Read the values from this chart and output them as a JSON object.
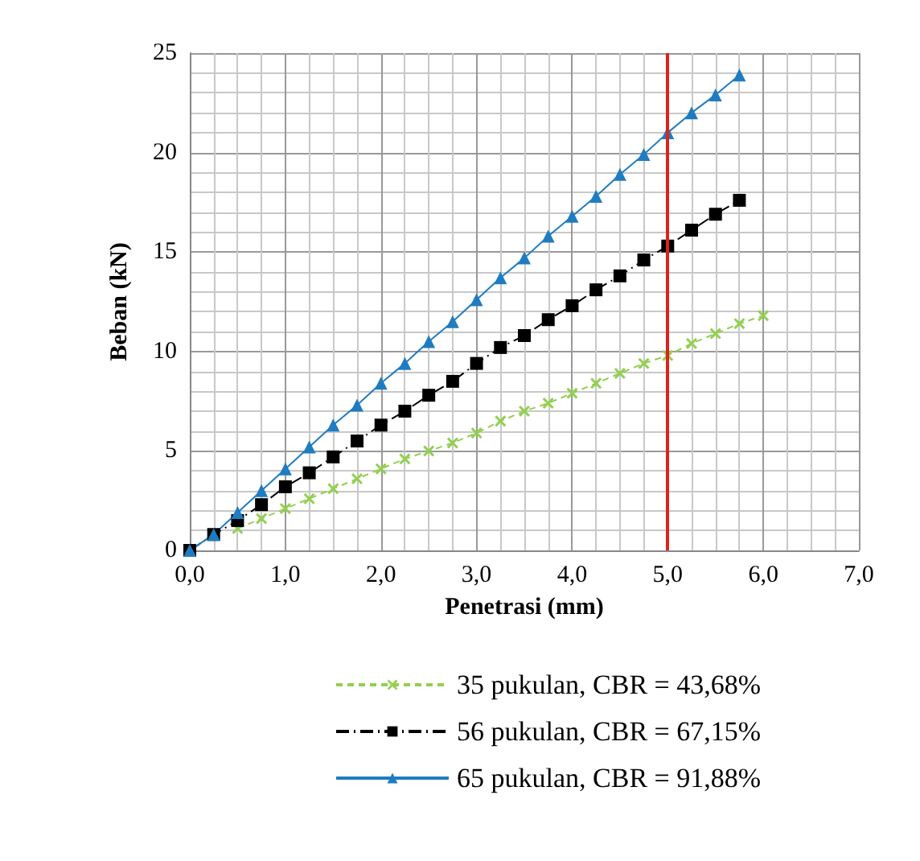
{
  "chart_data": {
    "type": "line",
    "xlabel": "Penetrasi (mm)",
    "ylabel": "Beban (kN)",
    "xlim": [
      0,
      7
    ],
    "xticks": [
      {
        "value": 0,
        "label": "0,0"
      },
      {
        "value": 1,
        "label": "1,0"
      },
      {
        "value": 2,
        "label": "2,0"
      },
      {
        "value": 3,
        "label": "3,0"
      },
      {
        "value": 4,
        "label": "4,0"
      },
      {
        "value": 5,
        "label": "5,0"
      },
      {
        "value": 6,
        "label": "6,0"
      },
      {
        "value": 7,
        "label": "7,0"
      }
    ],
    "ylim": [
      0,
      25
    ],
    "yticks": [
      0,
      5,
      10,
      15,
      20,
      25
    ],
    "grid": true,
    "legend": "bottom",
    "ref_lines": [
      {
        "axis": "x",
        "value": 5,
        "color": "#e0201b"
      }
    ],
    "series": [
      {
        "name": "35 pukulan, CBR = 43,68%",
        "color": "#92d050",
        "marker": "cross",
        "line_style": "dashed",
        "x": [
          0.5,
          0.75,
          1,
          1.25,
          1.5,
          1.75,
          2,
          2.25,
          2.5,
          2.75,
          3,
          3.25,
          3.5,
          3.75,
          4,
          4.25,
          4.5,
          4.75,
          5,
          5.25,
          5.5,
          5.75,
          6
        ],
        "values": [
          1.1,
          1.6,
          2.1,
          2.6,
          3.1,
          3.6,
          4.1,
          4.6,
          5.0,
          5.4,
          5.9,
          6.5,
          7.0,
          7.4,
          7.9,
          8.4,
          8.9,
          9.4,
          9.8,
          10.4,
          10.9,
          11.4,
          11.8
        ]
      },
      {
        "name": "56 pukulan, CBR = 67,15%",
        "color": "#000000",
        "marker": "square",
        "line_style": "dashdot",
        "x": [
          0,
          0.25,
          0.5,
          0.75,
          1,
          1.25,
          1.5,
          1.75,
          2,
          2.25,
          2.5,
          2.75,
          3,
          3.25,
          3.5,
          3.75,
          4,
          4.25,
          4.5,
          4.75,
          5,
          5.25,
          5.5,
          5.75
        ],
        "values": [
          0,
          0.8,
          1.5,
          2.3,
          3.2,
          3.9,
          4.7,
          5.5,
          6.3,
          7.0,
          7.8,
          8.5,
          9.4,
          10.2,
          10.8,
          11.6,
          12.3,
          13.1,
          13.8,
          14.6,
          15.3,
          16.1,
          16.9,
          17.6
        ]
      },
      {
        "name": "65 pukulan, CBR = 91,88%",
        "color": "#1f7cc1",
        "marker": "triangle",
        "line_style": "solid",
        "x": [
          0,
          0.25,
          0.5,
          0.75,
          1,
          1.25,
          1.5,
          1.75,
          2,
          2.25,
          2.5,
          2.75,
          3,
          3.25,
          3.5,
          3.75,
          4,
          4.25,
          4.5,
          4.75,
          5,
          5.25,
          5.5,
          5.75
        ],
        "values": [
          0,
          0.8,
          1.9,
          3.0,
          4.1,
          5.2,
          6.3,
          7.3,
          8.4,
          9.4,
          10.5,
          11.5,
          12.6,
          13.7,
          14.7,
          15.8,
          16.8,
          17.8,
          18.9,
          19.9,
          21.0,
          22.0,
          22.9,
          23.9
        ]
      }
    ]
  }
}
